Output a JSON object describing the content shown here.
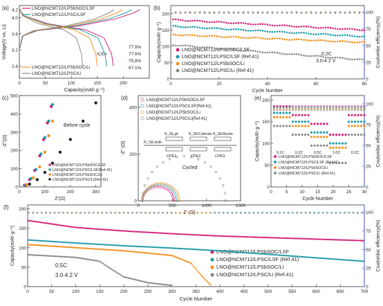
{
  "colors": {
    "magenta": "#d4237a",
    "teal": "#1f9aa8",
    "orange": "#f3921f",
    "grey": "#8a8a8a",
    "black": "#222222",
    "blue": "#3b4fb8"
  },
  "chart_data": [
    {
      "id": "a",
      "panel_label": "(a)",
      "type": "line",
      "xlabel": "Capacity(mAh g⁻¹)",
      "ylabel": "Voltage(V vs. Li)",
      "xlim": [
        0,
        250
      ],
      "ylim": [
        2.5,
        4.3
      ],
      "xticks": [
        "0",
        "50",
        "100",
        "150",
        "200"
      ],
      "yticks": [
        "2.8",
        "3.2",
        "3.6",
        "4.0",
        "4.2"
      ],
      "ice_label": "ICE=",
      "series": [
        {
          "name": "LNO@NCM712/LPSbSOC/LSF",
          "color": "magenta",
          "ice": "77.9%",
          "charge_cap": 232,
          "discharge_cap": 181
        },
        {
          "name": "LNO@NCM712/LPSC/LSF",
          "color": "teal",
          "ice": "77.6%",
          "charge_cap": 216,
          "discharge_cap": 168
        },
        {
          "name": "LNO@NCM712/LPSbSOC/Li",
          "color": "orange",
          "ice": "75.8%",
          "charge_cap": 198,
          "discharge_cap": 150
        },
        {
          "name": "LNO@NCM712/LPSC/Li",
          "color": "grey",
          "ice": "67.1%",
          "charge_cap": 182,
          "discharge_cap": 122
        }
      ]
    },
    {
      "id": "b",
      "panel_label": "(b)",
      "type": "scatter",
      "xlabel": "Cycle Number",
      "ylabel": "Capacity(mAh g⁻¹)",
      "y2label": "Coulombic efficiency(%)",
      "xlim": [
        0,
        80
      ],
      "ylim": [
        0,
        225
      ],
      "y2lim": [
        0,
        110
      ],
      "xticks": [
        "0",
        "20",
        "40",
        "60",
        "80"
      ],
      "yticks": [
        "0",
        "50",
        "100",
        "150",
        "200"
      ],
      "y2ticks": [
        "0",
        "25",
        "50",
        "75",
        "100"
      ],
      "annotations": [
        "0.2C",
        "3.0-4.2 V"
      ],
      "series": [
        {
          "name": "LNO@NCM712/LPSbSOC/LSF",
          "color": "magenta",
          "start": 182,
          "end": 150
        },
        {
          "name": "LNO@NCM712/LPSC/LSF (Ref.41)",
          "color": "teal",
          "start": 162,
          "end": 130
        },
        {
          "name": "LNO@NCM712/LPSbSOC/Li",
          "color": "orange",
          "start": 136,
          "end": 112
        },
        {
          "name": "LNO@NCM712/LPSC/Li (Ref.41)",
          "color": "grey",
          "start": 105,
          "end": 58
        }
      ]
    },
    {
      "id": "c",
      "panel_label": "(c)",
      "type": "scatter",
      "xlabel": "Z'(Ω)",
      "ylabel": "-Z''(Ω)",
      "xlim": [
        0,
        320
      ],
      "ylim": [
        0,
        500
      ],
      "xticks": [
        "0",
        "100",
        "200",
        "300"
      ],
      "yticks": [
        "0",
        "100",
        "200",
        "300",
        "400",
        "500"
      ],
      "annotation": "Before cycle",
      "series": [
        {
          "name": "LNO@NCM712/LPSbSOC/LSF",
          "color": "magenta",
          "x": [
            20,
            40,
            60,
            80,
            95,
            110,
            125
          ],
          "y": [
            10,
            40,
            90,
            170,
            260,
            350,
            440
          ]
        },
        {
          "name": "LNO@NCM712/LPSC/LSF(Ref.41)",
          "color": "teal",
          "x": [
            25,
            45,
            65,
            85,
            100,
            115,
            130
          ],
          "y": [
            10,
            45,
            95,
            180,
            270,
            360,
            450
          ]
        },
        {
          "name": "LNO@NCM712/LPSbSOC/Li",
          "color": "orange",
          "x": [
            30,
            55,
            80,
            100,
            115,
            130
          ],
          "y": [
            12,
            50,
            110,
            190,
            280,
            360
          ]
        },
        {
          "name": "LNO@NCM712/LPSC/Li(Ref.41)",
          "color": "black",
          "x": [
            40,
            70,
            100,
            130,
            160,
            200,
            250,
            300
          ],
          "y": [
            15,
            40,
            80,
            130,
            190,
            260,
            360,
            460
          ]
        }
      ]
    },
    {
      "id": "d",
      "panel_label": "(d)",
      "type": "scatter",
      "xlabel": "Z' (Ω)",
      "ylabel": "-Z'' (Ω)",
      "xlim": [
        0,
        1500
      ],
      "ylim": [
        0,
        450
      ],
      "xticks": [
        "0",
        "500",
        "1000",
        "1500"
      ],
      "yticks": [
        "0",
        "200",
        "400"
      ],
      "annotation": "Cycled",
      "circuit": {
        "r_se_bulk": "R_SE,bulk",
        "r_se_gb": "R_SE,gb",
        "r_se_cathode": "R_SE/Cathode",
        "r_se_anode": "R_SE/Anode",
        "cpe": [
          "CPE1",
          "CPE2",
          "CPE3"
        ]
      },
      "series": [
        {
          "name": "LNO@NCM712/LPSbSOC/LSF",
          "color": "magenta",
          "arc_end": 520,
          "arc_h": 60
        },
        {
          "name": "LNO@NCM712/LPSC/LSF(Ref.41)",
          "color": "teal",
          "arc_end": 560,
          "arc_h": 70
        },
        {
          "name": "LNO@NCM712/LPSbSOC/Li",
          "color": "orange",
          "arc_end": 600,
          "arc_h": 75
        },
        {
          "name": "LNO@NCM712/LPSC/Li(Ref.41)",
          "color": "grey",
          "arc_end": 1280,
          "arc_h": 190
        }
      ]
    },
    {
      "id": "e",
      "panel_label": "(e)",
      "type": "scatter",
      "xlabel": "Cycle Number",
      "ylabel": "Capacity(mAh g⁻¹)",
      "y2label": "Coulombic efficiency(%)",
      "xlim": [
        0,
        30
      ],
      "ylim": [
        0,
        210
      ],
      "y2lim": [
        0,
        110
      ],
      "xticks": [
        "0",
        "5",
        "10",
        "15",
        "20",
        "25",
        "30"
      ],
      "yticks": [
        "0",
        "50",
        "100",
        "150",
        "200"
      ],
      "y2ticks": [
        "0",
        "25",
        "50",
        "75",
        "100"
      ],
      "rate_labels": [
        "0.1C",
        "0.2C",
        "0.5C",
        "1.0C",
        "0.2C"
      ],
      "series": [
        {
          "name": "LNO@NCM712/LPSbSOC/LSF",
          "color": "magenta",
          "levels": [
            185,
            165,
            145,
            120,
            165
          ]
        },
        {
          "name": "LNO@NCM712/LPSC/LSF (Ref.41)",
          "color": "teal",
          "levels": [
            170,
            150,
            125,
            100,
            150
          ]
        },
        {
          "name": "LNO@NCM712/LPSbSOC/Li",
          "color": "orange",
          "levels": [
            160,
            140,
            115,
            90,
            140
          ]
        },
        {
          "name": "LNO@NCM712/LPSC/Li (Ref.41)",
          "color": "grey",
          "levels": [
            140,
            120,
            95,
            55,
            120
          ]
        }
      ]
    },
    {
      "id": "f",
      "panel_label": "(f)",
      "type": "scatter",
      "xlabel": "Cycle Number",
      "ylabel": "Capacity(mAh g⁻¹)",
      "y2label": "Coulombic efficiency(%)",
      "xlim": [
        0,
        700
      ],
      "ylim": [
        0,
        210
      ],
      "y2lim": [
        0,
        110
      ],
      "xticks": [
        "0",
        "50",
        "100",
        "150",
        "200",
        "250",
        "300",
        "350",
        "400",
        "450",
        "500",
        "550",
        "600",
        "650",
        "700"
      ],
      "yticks": [
        "0",
        "50",
        "100",
        "150",
        "200"
      ],
      "y2ticks": [
        "0",
        "25",
        "50",
        "75",
        "100"
      ],
      "annotations": [
        "0.5C",
        "3.0-4.2 V"
      ],
      "series": [
        {
          "name": "LNO@NCM712/LPSbSOC/LSF",
          "color": "magenta",
          "x": [
            0,
            100,
            200,
            300,
            400,
            500,
            600,
            700
          ],
          "y": [
            170,
            152,
            143,
            136,
            130,
            126,
            122,
            118
          ]
        },
        {
          "name": "LNO@NCM712/LPSC/LSF (Ref.41)",
          "color": "teal",
          "x": [
            0,
            100,
            200,
            300,
            400,
            500,
            600,
            700
          ],
          "y": [
            120,
            112,
            105,
            99,
            92,
            83,
            74,
            65
          ]
        },
        {
          "name": "LNO@NCM712/LPSbSOC/Li",
          "color": "orange",
          "x": [
            0,
            100,
            200,
            300,
            340,
            360,
            380
          ],
          "y": [
            108,
            100,
            92,
            80,
            60,
            30,
            5
          ]
        },
        {
          "name": "LNO@NCM712/LPSC/Li (Ref.41)",
          "color": "grey",
          "x": [
            0,
            100,
            150,
            170,
            200,
            250,
            300
          ],
          "y": [
            82,
            75,
            65,
            48,
            25,
            10,
            3
          ]
        }
      ]
    }
  ]
}
